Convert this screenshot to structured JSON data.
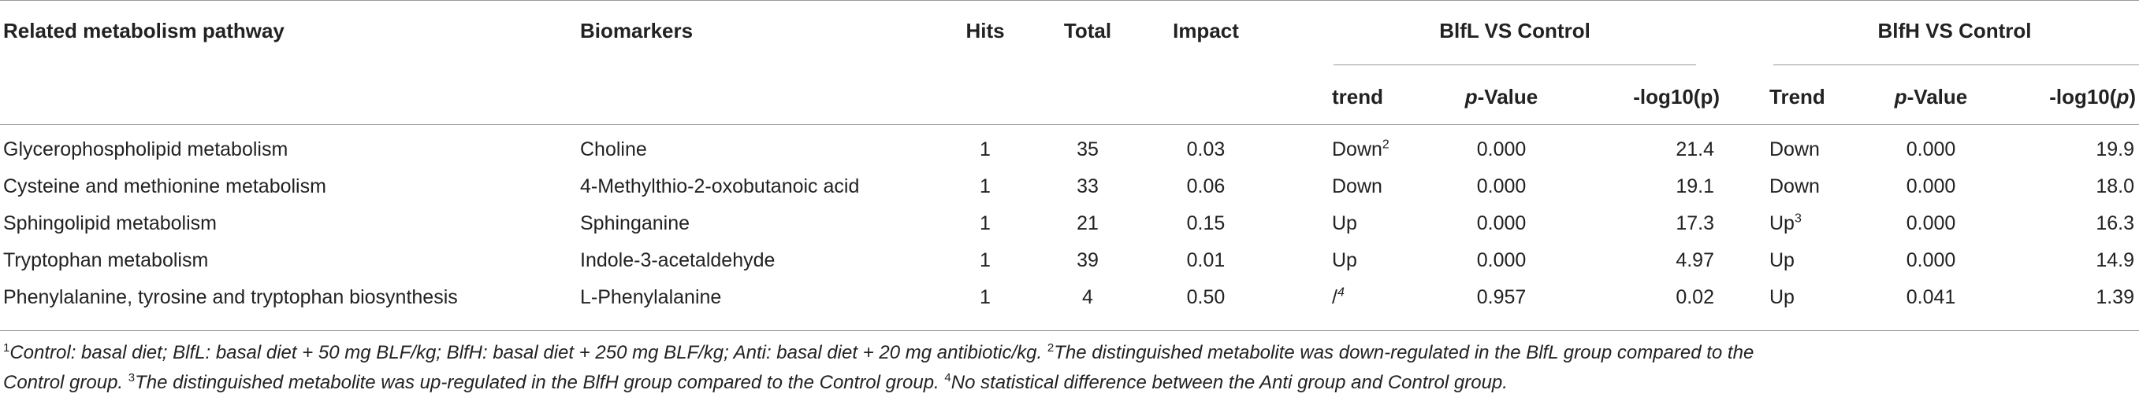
{
  "headers": {
    "pathway": "Related metabolism pathway",
    "biomarkers": "Biomarkers",
    "hits": "Hits",
    "total": "Total",
    "impact": "Impact",
    "group_l": "BlfL VS Control",
    "group_h": "BlfH VS Control",
    "trend_l": "trend",
    "pvalue_p": "p",
    "pvalue_rest": "-Value",
    "log_l": "-log10(p)",
    "trend_h": "Trend",
    "log_h_pre": "-log10(",
    "log_h_p": "p",
    "log_h_post": ")"
  },
  "rows": [
    {
      "pathway": "Glycerophospholipid metabolism",
      "biomarker": "Choline",
      "hits": "1",
      "total": "35",
      "impact": "0.03",
      "trend_l": "Down",
      "trend_l_sup": "2",
      "p_l": "0.000",
      "log_l": "21.4",
      "trend_h": "Down",
      "trend_h_sup": "",
      "p_h": "0.000",
      "log_h": "19.9"
    },
    {
      "pathway": "Cysteine and methionine metabolism",
      "biomarker": "4-Methylthio-2-oxobutanoic acid",
      "hits": "1",
      "total": "33",
      "impact": "0.06",
      "trend_l": "Down",
      "trend_l_sup": "",
      "p_l": "0.000",
      "log_l": "19.1",
      "trend_h": "Down",
      "trend_h_sup": "",
      "p_h": "0.000",
      "log_h": "18.0"
    },
    {
      "pathway": "Sphingolipid metabolism",
      "biomarker": "Sphinganine",
      "hits": "1",
      "total": "21",
      "impact": "0.15",
      "trend_l": "Up",
      "trend_l_sup": "",
      "p_l": "0.000",
      "log_l": "17.3",
      "trend_h": "Up",
      "trend_h_sup": "3",
      "p_h": "0.000",
      "log_h": "16.3"
    },
    {
      "pathway": "Tryptophan metabolism",
      "biomarker": "Indole-3-acetaldehyde",
      "hits": "1",
      "total": "39",
      "impact": "0.01",
      "trend_l": "Up",
      "trend_l_sup": "",
      "p_l": "0.000",
      "log_l": "4.97",
      "trend_h": "Up",
      "trend_h_sup": "",
      "p_h": "0.000",
      "log_h": "14.9"
    },
    {
      "pathway": "Phenylalanine, tyrosine and tryptophan biosynthesis",
      "biomarker_prefix": "L",
      "biomarker": "-Phenylalanine",
      "hits": "1",
      "total": "4",
      "impact": "0.50",
      "trend_l": "/",
      "trend_l_sup": "4",
      "p_l": "0.957",
      "log_l": "0.02",
      "trend_h": "Up",
      "trend_h_sup": "",
      "p_h": "0.041",
      "log_h": "1.39"
    }
  ],
  "footnotes": {
    "n1": "1",
    "t1": "Control: basal diet; BlfL: basal diet + 50 mg BLF/kg; BlfH: basal diet + 250 mg BLF/kg; Anti: basal diet + 20 mg antibiotic/kg.",
    "n2": "2",
    "t2a": "The distinguished metabolite was down-regulated in the BlfL group compared to the",
    "t2b": "Control group.",
    "n3": "3",
    "t3": "The distinguished metabolite was up-regulated in the BlfH group compared to the Control group.",
    "n4": "4",
    "t4": "No statistical difference between the Anti group and Control group."
  }
}
